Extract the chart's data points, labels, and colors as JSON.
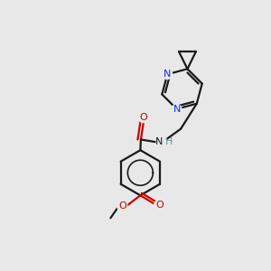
{
  "background_color": "#e8e8e8",
  "bond_color": "#1a1a1a",
  "nitrogen_color": "#2020ff",
  "oxygen_color": "#cc0000",
  "hydrogen_color": "#669999",
  "line_width": 1.6,
  "figsize": [
    3.0,
    3.0
  ],
  "dpi": 100,
  "xlim": [
    0,
    10
  ],
  "ylim": [
    0,
    10
  ]
}
